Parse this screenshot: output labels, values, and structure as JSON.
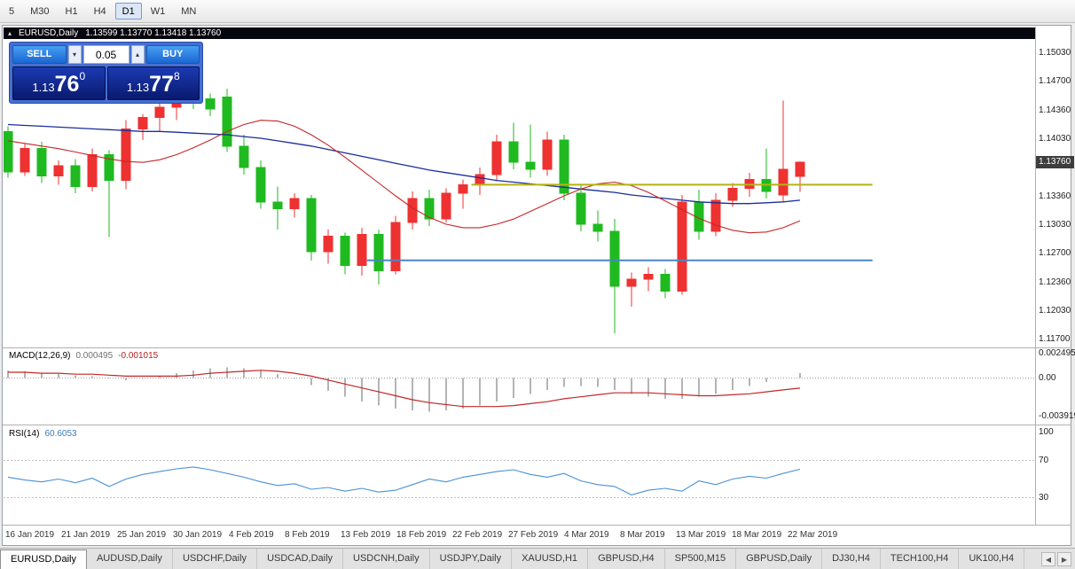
{
  "window": {
    "title_symbol": "EURUSD,Daily",
    "title_ohlc": "1.13599 1.13770 1.13418 1.13760",
    "price_badge": "1.13760"
  },
  "icons": {
    "collapse": "▴",
    "lot_down": "▾",
    "lot_up": "▴",
    "tab_scroll_left": "◀",
    "tab_scroll_right": "▶"
  },
  "toolbar": {
    "timeframes": [
      {
        "label": "5",
        "active": false
      },
      {
        "label": "M30",
        "active": false
      },
      {
        "label": "H1",
        "active": false
      },
      {
        "label": "H4",
        "active": false
      },
      {
        "label": "D1",
        "active": true
      },
      {
        "label": "W1",
        "active": false
      },
      {
        "label": "MN",
        "active": false
      }
    ]
  },
  "trade_panel": {
    "sell_label": "SELL",
    "buy_label": "BUY",
    "lot": "0.05",
    "sell_price": {
      "big": "1.13",
      "mid": "76",
      "sup": "0"
    },
    "buy_price": {
      "big": "1.13",
      "mid": "77",
      "sup": "8"
    }
  },
  "indicators": {
    "macd_title": "MACD(12,26,9)",
    "macd_value1": "0.000495",
    "macd_value2": "-0.001015",
    "rsi_title": "RSI(14)",
    "rsi_value": "60.6053"
  },
  "axes": {
    "price": [
      "1.15030",
      "1.14700",
      "1.14360",
      "1.14030",
      "1.13360",
      "1.13030",
      "1.12700",
      "1.12360",
      "1.12030",
      "1.11700"
    ],
    "macd": [
      "0.002495",
      "0.00",
      "-0.003919"
    ],
    "rsi": [
      "100",
      "70",
      "30"
    ],
    "dates": [
      "16 Jan 2019",
      "21 Jan 2019",
      "25 Jan 2019",
      "30 Jan 2019",
      "4 Feb 2019",
      "8 Feb 2019",
      "13 Feb 2019",
      "18 Feb 2019",
      "22 Feb 2019",
      "27 Feb 2019",
      "4 Mar 2019",
      "8 Mar 2019",
      "13 Mar 2019",
      "18 Mar 2019",
      "22 Mar 2019"
    ]
  },
  "chart_data": [
    {
      "type": "candlestick",
      "pane": "price",
      "symbol": "EURUSD",
      "timeframe": "Daily",
      "ylim": [
        1.117,
        1.1503
      ],
      "bull_color": "#ee3131",
      "bear_color": "#1fba1f",
      "last_price": 1.1376,
      "ohlc": [
        [
          1.1412,
          1.1418,
          1.1358,
          1.1365
        ],
        [
          1.1365,
          1.1398,
          1.136,
          1.1392
        ],
        [
          1.1392,
          1.14,
          1.1352,
          1.136
        ],
        [
          1.136,
          1.1378,
          1.135,
          1.1372
        ],
        [
          1.1372,
          1.138,
          1.134,
          1.1348
        ],
        [
          1.1348,
          1.1392,
          1.1342,
          1.1385
        ],
        [
          1.1385,
          1.139,
          1.1289,
          1.1355
        ],
        [
          1.1355,
          1.1425,
          1.1345,
          1.1415
        ],
        [
          1.1415,
          1.1432,
          1.1402,
          1.1428
        ],
        [
          1.1428,
          1.1445,
          1.1412,
          1.144
        ],
        [
          1.144,
          1.147,
          1.1425,
          1.1462
        ],
        [
          1.1462,
          1.1468,
          1.1438,
          1.145
        ],
        [
          1.145,
          1.1456,
          1.143,
          1.1438
        ],
        [
          1.1452,
          1.1462,
          1.1388,
          1.1395
        ],
        [
          1.1395,
          1.1408,
          1.1362,
          1.137
        ],
        [
          1.137,
          1.1378,
          1.1322,
          1.133
        ],
        [
          1.133,
          1.1348,
          1.1298,
          1.1322
        ],
        [
          1.1322,
          1.134,
          1.1312,
          1.1334
        ],
        [
          1.1334,
          1.1338,
          1.1262,
          1.1272
        ],
        [
          1.1272,
          1.1298,
          1.1258,
          1.129
        ],
        [
          1.129,
          1.1294,
          1.1246,
          1.1256
        ],
        [
          1.1256,
          1.13,
          1.1244,
          1.1292
        ],
        [
          1.1292,
          1.1298,
          1.1234,
          1.125
        ],
        [
          1.125,
          1.1314,
          1.1246,
          1.1306
        ],
        [
          1.1306,
          1.1342,
          1.1298,
          1.1334
        ],
        [
          1.1334,
          1.1344,
          1.1302,
          1.131
        ],
        [
          1.131,
          1.1346,
          1.1306,
          1.134
        ],
        [
          1.134,
          1.1356,
          1.1322,
          1.135
        ],
        [
          1.135,
          1.137,
          1.1338,
          1.1362
        ],
        [
          1.1362,
          1.1408,
          1.1354,
          1.14
        ],
        [
          1.14,
          1.1422,
          1.1368,
          1.1376
        ],
        [
          1.1376,
          1.142,
          1.1358,
          1.1368
        ],
        [
          1.1368,
          1.1412,
          1.136,
          1.1402
        ],
        [
          1.1402,
          1.1408,
          1.1332,
          1.134
        ],
        [
          1.134,
          1.135,
          1.1296,
          1.1304
        ],
        [
          1.1304,
          1.132,
          1.1284,
          1.1296
        ],
        [
          1.1296,
          1.131,
          1.1177,
          1.1232
        ],
        [
          1.1232,
          1.1248,
          1.1208,
          1.124
        ],
        [
          1.124,
          1.1254,
          1.1226,
          1.1246
        ],
        [
          1.1246,
          1.1252,
          1.1218,
          1.1226
        ],
        [
          1.1226,
          1.1338,
          1.1222,
          1.133
        ],
        [
          1.133,
          1.1344,
          1.1286,
          1.1296
        ],
        [
          1.1296,
          1.134,
          1.129,
          1.1332
        ],
        [
          1.1332,
          1.1352,
          1.1324,
          1.1346
        ],
        [
          1.1346,
          1.1364,
          1.1336,
          1.1356
        ],
        [
          1.1356,
          1.1392,
          1.1334,
          1.1342
        ],
        [
          1.1338,
          1.1448,
          1.133,
          1.1368
        ],
        [
          1.13599,
          1.1377,
          1.13418,
          1.1376
        ]
      ],
      "overlays": {
        "ma_slow_color": "#1b2d9b",
        "ma_fast_color": "#c42828",
        "ma_slow": [
          1.142,
          1.1419,
          1.1418,
          1.1417,
          1.1416,
          1.1415,
          1.1414,
          1.1413,
          1.1412,
          1.1412,
          1.1411,
          1.141,
          1.1409,
          1.1408,
          1.1406,
          1.1404,
          1.1401,
          1.1398,
          1.1395,
          1.1391,
          1.1387,
          1.1383,
          1.1379,
          1.1375,
          1.1371,
          1.1367,
          1.1364,
          1.1361,
          1.1358,
          1.1355,
          1.1353,
          1.1351,
          1.1349,
          1.1347,
          1.1345,
          1.1343,
          1.1341,
          1.1338,
          1.1336,
          1.1334,
          1.1332,
          1.133,
          1.1329,
          1.1328,
          1.1328,
          1.1329,
          1.133,
          1.1332
        ],
        "ma_fast": [
          1.1401,
          1.1398,
          1.1395,
          1.1392,
          1.1388,
          1.1384,
          1.138,
          1.1377,
          1.1376,
          1.1379,
          1.1385,
          1.1393,
          1.1402,
          1.1412,
          1.142,
          1.1425,
          1.1424,
          1.1418,
          1.1408,
          1.1396,
          1.1382,
          1.1367,
          1.1352,
          1.1337,
          1.1323,
          1.1312,
          1.1304,
          1.13,
          1.13,
          1.1304,
          1.131,
          1.1319,
          1.1328,
          1.1337,
          1.1345,
          1.1351,
          1.1353,
          1.1349,
          1.1341,
          1.1331,
          1.1321,
          1.1311,
          1.1303,
          1.1297,
          1.1294,
          1.1295,
          1.13,
          1.1308
        ],
        "hlines": [
          {
            "price": 1.135,
            "color": "#b5b312",
            "from_i": 27.5,
            "to_i": 51.3
          },
          {
            "price": 1.1262,
            "color": "#4a86c8",
            "from_i": 21.3,
            "to_i": 51.3
          }
        ]
      }
    },
    {
      "type": "bar",
      "pane": "macd",
      "name": "MACD(12,26,9)",
      "ylim": [
        -0.003919,
        0.002495
      ],
      "bar_color": "#b4b4b4",
      "signal_color": "#c42828",
      "histogram": [
        0.0008,
        0.0007,
        0.0005,
        0.0004,
        0.0003,
        0.0002,
        0,
        -0.0002,
        -0.0001,
        0.0002,
        0.0005,
        0.0008,
        0.001,
        0.0011,
        0.001,
        0.0008,
        0.0004,
        -0.0001,
        -0.0007,
        -0.0013,
        -0.0019,
        -0.0024,
        -0.0028,
        -0.0031,
        -0.0033,
        -0.0034,
        -0.0033,
        -0.0031,
        -0.0028,
        -0.0024,
        -0.002,
        -0.0016,
        -0.0012,
        -0.0009,
        -0.0008,
        -0.0009,
        -0.0012,
        -0.0016,
        -0.0019,
        -0.0021,
        -0.0021,
        -0.0019,
        -0.0016,
        -0.0012,
        -0.0008,
        -0.0004,
        0,
        0.000495
      ],
      "signal": [
        0.0006,
        0.0006,
        0.0005,
        0.0005,
        0.0004,
        0.0004,
        0.0003,
        0.0002,
        0.0002,
        0.0002,
        0.0002,
        0.0003,
        0.0005,
        0.0006,
        0.0007,
        0.0008,
        0.0007,
        0.0005,
        0.0002,
        -0.0002,
        -0.0006,
        -0.001,
        -0.0014,
        -0.0018,
        -0.0022,
        -0.0025,
        -0.0027,
        -0.0029,
        -0.0029,
        -0.0029,
        -0.0028,
        -0.0026,
        -0.0024,
        -0.0021,
        -0.0019,
        -0.0017,
        -0.0015,
        -0.0015,
        -0.0015,
        -0.0016,
        -0.0017,
        -0.0018,
        -0.0018,
        -0.0017,
        -0.0016,
        -0.0014,
        -0.0012,
        -0.001015
      ]
    },
    {
      "type": "line",
      "pane": "rsi",
      "name": "RSI(14)",
      "ylim": [
        0,
        100
      ],
      "levels": [
        70,
        30
      ],
      "line_color": "#4a90d5",
      "values": [
        52,
        49,
        47,
        50,
        46,
        51,
        42,
        50,
        55,
        58,
        61,
        63,
        60,
        56,
        52,
        47,
        43,
        45,
        39,
        41,
        37,
        40,
        36,
        38,
        44,
        50,
        47,
        52,
        55,
        58,
        60,
        55,
        52,
        56,
        48,
        44,
        42,
        33,
        38,
        40,
        37,
        48,
        44,
        50,
        53,
        51,
        56,
        60.6
      ]
    }
  ],
  "tabs": {
    "items": [
      {
        "label": "EURUSD,Daily",
        "active": true
      },
      {
        "label": "AUDUSD,Daily",
        "active": false
      },
      {
        "label": "USDCHF,Daily",
        "active": false
      },
      {
        "label": "USDCAD,Daily",
        "active": false
      },
      {
        "label": "USDCNH,Daily",
        "active": false
      },
      {
        "label": "USDJPY,Daily",
        "active": false
      },
      {
        "label": "XAUUSD,H1",
        "active": false
      },
      {
        "label": "GBPUSD,H4",
        "active": false
      },
      {
        "label": "SP500,M15",
        "active": false
      },
      {
        "label": "GBPUSD,Daily",
        "active": false
      },
      {
        "label": "DJ30,H4",
        "active": false
      },
      {
        "label": "TECH100,H4",
        "active": false
      },
      {
        "label": "UK100,H4",
        "active": false
      }
    ]
  }
}
